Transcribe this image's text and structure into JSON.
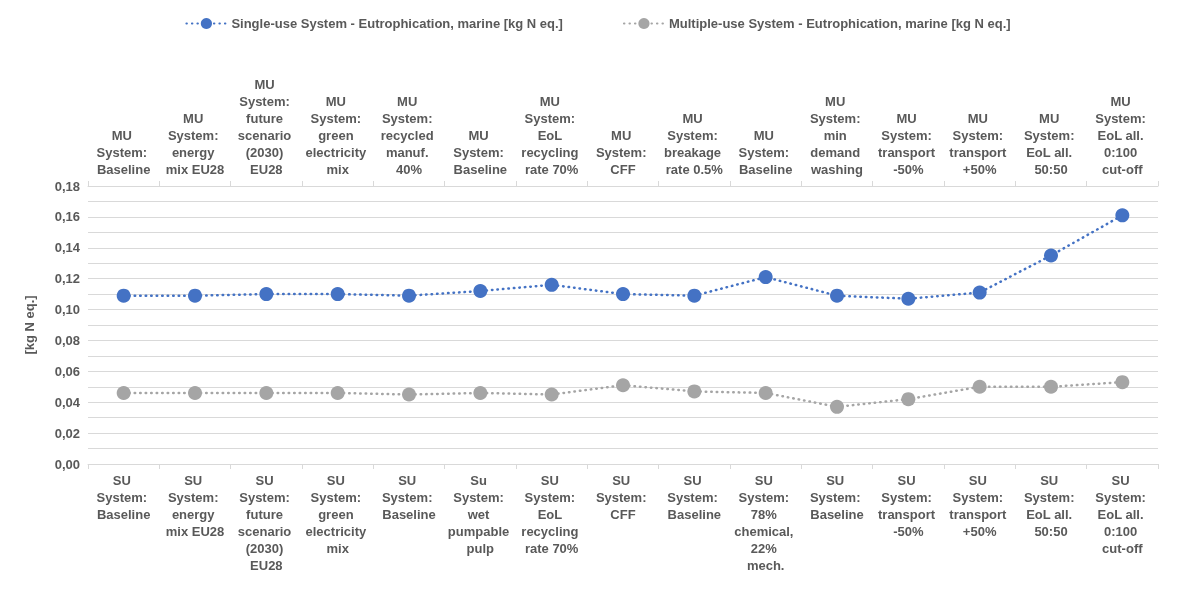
{
  "chart_data": {
    "type": "line",
    "ylabel": "[kg N eq.]",
    "categories": [
      "SU System: Baseline",
      "SU System: energy mix EU28",
      "SU System: future scenario (2030) EU28",
      "SU System: green electricity mix",
      "SU System: Baseline",
      "Su System: wet pumpable pulp",
      "SU System: EoL recycling rate 70%",
      "SU System: CFF",
      "SU System: Baseline",
      "SU System: 78% chemical, 22% mech.",
      "SU System: Baseline",
      "SU System: transport -50%",
      "SU System: transport +50%",
      "SU System: EoL all. 50:50",
      "SU System: EoL all. 0:100 cut-off"
    ],
    "annotations": [
      "MU System: Baseline",
      "MU System: energy mix EU28",
      "MU System: future scenario (2030) EU28",
      "MU System: green electricity mix",
      "MU System: recycled manuf. 40%",
      "MU System: Baseline",
      "MU System: EoL recycling rate 70%",
      "MU System: CFF",
      "MU System: breakage rate 0.5%",
      "MU System: Baseline",
      "MU System: min demand washing",
      "MU System: transport -50%",
      "MU System: transport +50%",
      "MU System: EoL all. 50:50",
      "MU System: EoL all. 0:100 cut-off"
    ],
    "series": [
      {
        "name": "Single-use System - Eutrophication, marine [kg N eq.]",
        "color": "#4472c4",
        "values": [
          0.109,
          0.109,
          0.11,
          0.11,
          0.109,
          0.112,
          0.116,
          0.11,
          0.109,
          0.121,
          0.109,
          0.107,
          0.111,
          0.135,
          0.161
        ]
      },
      {
        "name": "Multiple-use System - Eutrophication, marine [kg N eq.]",
        "color": "#a5a5a5",
        "values": [
          0.046,
          0.046,
          0.046,
          0.046,
          0.045,
          0.046,
          0.045,
          0.051,
          0.047,
          0.046,
          0.037,
          0.042,
          0.05,
          0.05,
          0.053
        ]
      }
    ],
    "ylim": [
      0,
      0.18
    ],
    "yticks": [
      {
        "value": 0,
        "label": "0,00"
      },
      {
        "value": 0.01,
        "label": null
      },
      {
        "value": 0.02,
        "label": "0,02"
      },
      {
        "value": 0.03,
        "label": null
      },
      {
        "value": 0.04,
        "label": "0,04"
      },
      {
        "value": 0.05,
        "label": null
      },
      {
        "value": 0.06,
        "label": "0,06"
      },
      {
        "value": 0.07,
        "label": null
      },
      {
        "value": 0.08,
        "label": "0,08"
      },
      {
        "value": 0.09,
        "label": null
      },
      {
        "value": 0.1,
        "label": "0,10"
      },
      {
        "value": 0.11,
        "label": null
      },
      {
        "value": 0.12,
        "label": "0,12"
      },
      {
        "value": 0.13,
        "label": null
      },
      {
        "value": 0.14,
        "label": "0,14"
      },
      {
        "value": 0.15,
        "label": null
      },
      {
        "value": 0.16,
        "label": "0,16"
      },
      {
        "value": 0.17,
        "label": null
      },
      {
        "value": 0.18,
        "label": "0,18"
      }
    ],
    "grid": "y",
    "legend": "top",
    "marker": "circle",
    "line_style": "dotted"
  }
}
